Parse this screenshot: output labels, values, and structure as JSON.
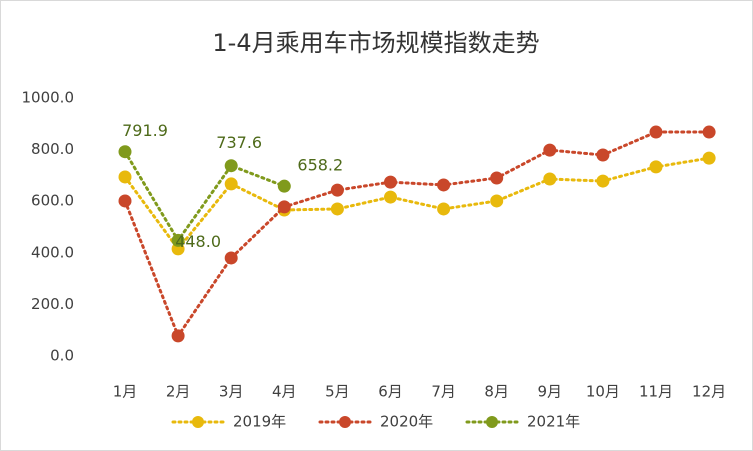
{
  "chart_data": {
    "type": "line",
    "title": "1-4月乘用车市场规模指数走势",
    "categories": [
      "1月",
      "2月",
      "3月",
      "4月",
      "5月",
      "6月",
      "7月",
      "8月",
      "9月",
      "10月",
      "11月",
      "12月"
    ],
    "series": [
      {
        "name": "2019年",
        "color": "#e8b90c",
        "values": [
          694,
          415,
          667,
          566,
          570,
          616,
          570,
          601,
          686,
          678,
          733,
          767
        ]
      },
      {
        "name": "2020年",
        "color": "#c9472a",
        "values": [
          601,
          78,
          380,
          578,
          643,
          674,
          663,
          690,
          798,
          779,
          868,
          868
        ]
      },
      {
        "name": "2021年",
        "color": "#809a1c",
        "values": [
          791.9,
          448.0,
          737.6,
          658.2,
          null,
          null,
          null,
          null,
          null,
          null,
          null,
          null
        ],
        "value_labels": [
          "791.9",
          "448.0",
          "737.6",
          "658.2",
          null,
          null,
          null,
          null,
          null,
          null,
          null,
          null
        ]
      }
    ],
    "ylim": [
      0,
      1000
    ],
    "yticks": [
      {
        "value": 0,
        "label": "0.0"
      },
      {
        "value": 200,
        "label": "200.0"
      },
      {
        "value": 400,
        "label": "400.0"
      },
      {
        "value": 600,
        "label": "600.0"
      },
      {
        "value": 800,
        "label": "800.0"
      },
      {
        "value": 1000,
        "label": "1000.0"
      }
    ],
    "grid": false,
    "legend": "bottom"
  }
}
